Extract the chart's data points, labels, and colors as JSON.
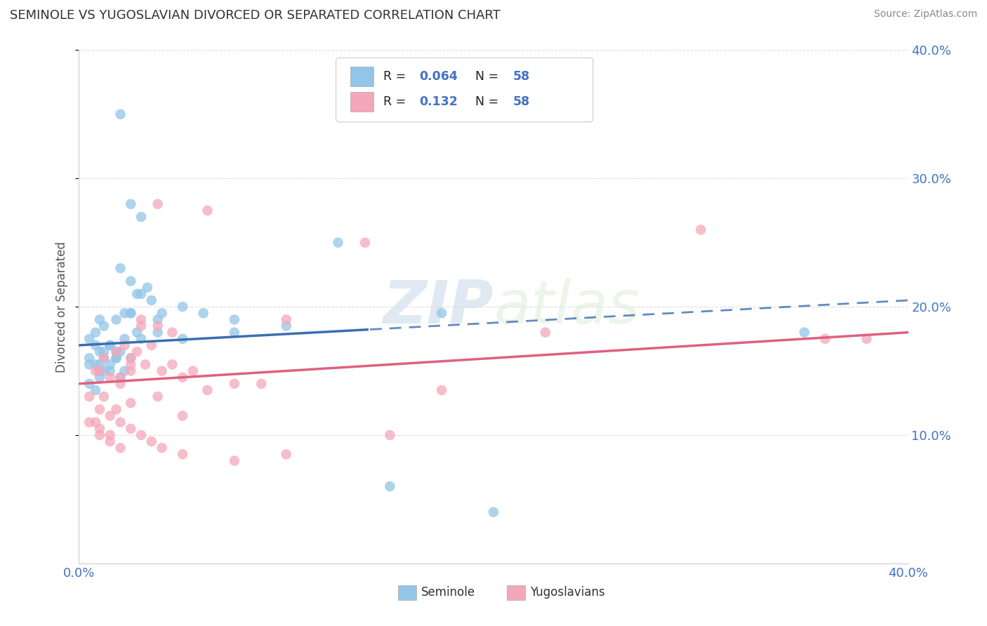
{
  "title": "SEMINOLE VS YUGOSLAVIAN DIVORCED OR SEPARATED CORRELATION CHART",
  "source": "Source: ZipAtlas.com",
  "ylabel": "Divorced or Separated",
  "legend_label1": "Seminole",
  "legend_label2": "Yugoslavians",
  "r1": "0.064",
  "n1": "58",
  "r2": "0.132",
  "n2": "58",
  "color_blue": "#92c5e8",
  "color_pink": "#f4a7b9",
  "color_blue_line": "#3a6faf",
  "color_pink_line": "#e0607e",
  "watermark_zip": "ZIP",
  "watermark_atlas": "atlas",
  "seminole_x": [
    0.5,
    2.0,
    2.5,
    3.0,
    4.0,
    1.0,
    0.8,
    1.2,
    1.8,
    2.2,
    2.8,
    3.3,
    1.0,
    1.5,
    2.0,
    2.5,
    3.8,
    5.0,
    0.5,
    1.0,
    1.5,
    2.0,
    2.5,
    3.0,
    3.5,
    0.8,
    1.2,
    1.8,
    2.2,
    2.8,
    6.0,
    7.5,
    12.5,
    15.0,
    20.0,
    35.0,
    0.5,
    0.8,
    1.0,
    1.2,
    1.5,
    1.8,
    2.5,
    3.8,
    5.0,
    7.5,
    10.0,
    17.5,
    0.8,
    1.2,
    1.8,
    1.0,
    1.5,
    2.0,
    2.5,
    3.0,
    0.5,
    2.2
  ],
  "seminole_y": [
    17.5,
    35.0,
    28.0,
    27.0,
    19.5,
    19.0,
    18.0,
    18.5,
    19.0,
    19.5,
    21.0,
    21.5,
    16.5,
    17.0,
    23.0,
    22.0,
    19.0,
    20.0,
    16.0,
    15.5,
    15.0,
    14.5,
    19.5,
    21.0,
    20.5,
    17.0,
    16.5,
    16.0,
    17.5,
    18.0,
    19.5,
    19.0,
    25.0,
    6.0,
    4.0,
    18.0,
    14.0,
    13.5,
    14.5,
    15.0,
    15.5,
    16.0,
    19.5,
    18.0,
    17.5,
    18.0,
    18.5,
    19.5,
    15.5,
    16.0,
    16.5,
    15.0,
    17.0,
    16.5,
    16.0,
    17.5,
    15.5,
    15.0
  ],
  "yugoslavian_x": [
    1.2,
    2.5,
    3.8,
    5.0,
    0.8,
    1.8,
    3.0,
    4.5,
    1.0,
    1.5,
    2.0,
    2.5,
    3.8,
    6.2,
    0.5,
    1.0,
    1.5,
    2.0,
    2.5,
    3.0,
    3.5,
    4.5,
    5.5,
    7.5,
    10.0,
    13.8,
    17.5,
    22.5,
    30.0,
    36.0,
    0.8,
    1.2,
    1.8,
    2.2,
    2.8,
    3.2,
    4.0,
    5.0,
    1.0,
    1.5,
    2.0,
    2.5,
    3.8,
    6.2,
    8.8,
    15.0,
    0.5,
    1.0,
    1.5,
    2.0,
    2.5,
    3.0,
    3.5,
    4.0,
    5.0,
    7.5,
    10.0,
    38.0
  ],
  "yugoslavian_y": [
    13.0,
    12.5,
    18.5,
    11.5,
    11.0,
    12.0,
    19.0,
    18.0,
    15.0,
    14.5,
    14.0,
    15.5,
    28.0,
    27.5,
    11.0,
    10.5,
    10.0,
    14.5,
    16.0,
    18.5,
    17.0,
    15.5,
    15.0,
    14.0,
    19.0,
    25.0,
    13.5,
    18.0,
    26.0,
    17.5,
    15.0,
    16.0,
    16.5,
    17.0,
    16.5,
    15.5,
    15.0,
    14.5,
    10.0,
    9.5,
    9.0,
    15.0,
    13.0,
    13.5,
    14.0,
    10.0,
    13.0,
    12.0,
    11.5,
    11.0,
    10.5,
    10.0,
    9.5,
    9.0,
    8.5,
    8.0,
    8.5,
    17.5
  ],
  "blue_line_x0": 0,
  "blue_line_y0": 17.0,
  "blue_line_x1": 40,
  "blue_line_y1": 20.5,
  "blue_solid_end": 14,
  "pink_line_x0": 0,
  "pink_line_y0": 14.0,
  "pink_line_x1": 40,
  "pink_line_y1": 18.0,
  "xlim": [
    0.0,
    40.0
  ],
  "ylim": [
    0.0,
    40.0
  ],
  "ytick_vals": [
    10.0,
    20.0,
    30.0,
    40.0
  ],
  "ytick_labels": [
    "10.0%",
    "20.0%",
    "30.0%",
    "40.0%"
  ],
  "background_color": "#ffffff",
  "grid_color": "#dddddd"
}
